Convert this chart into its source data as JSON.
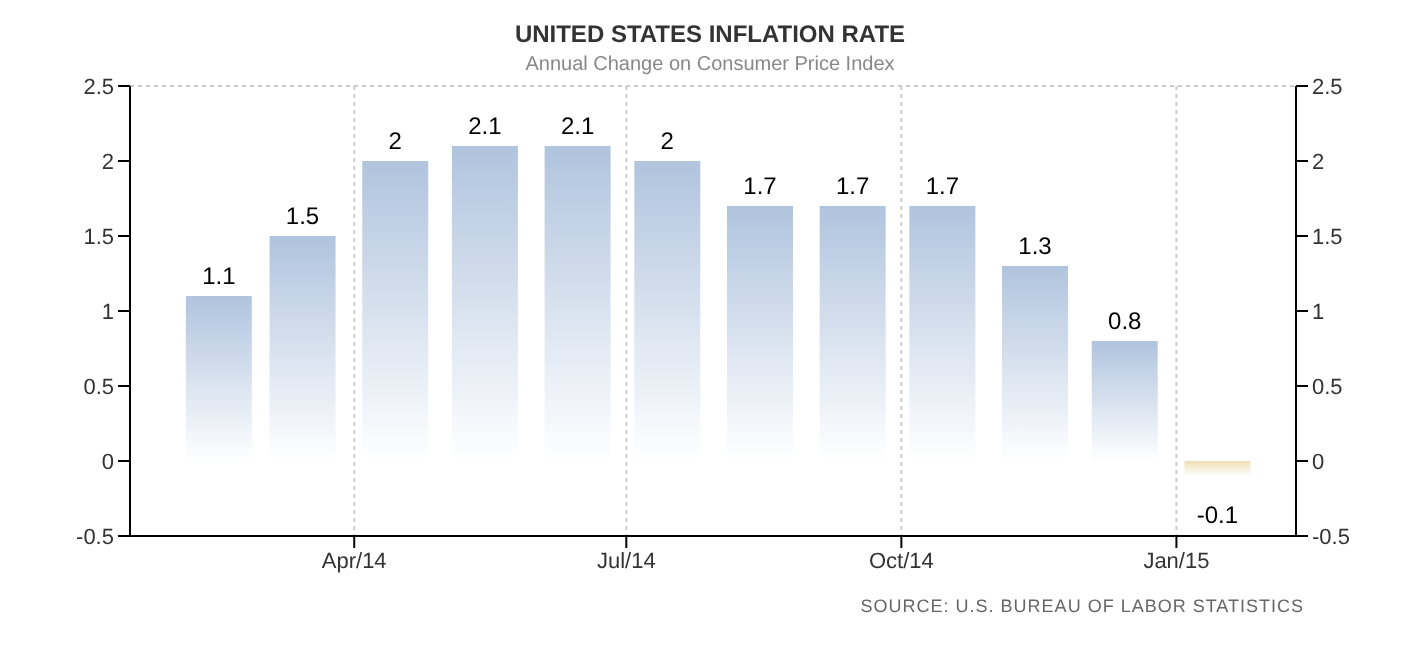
{
  "chart_data": {
    "type": "bar",
    "title": "UNITED STATES INFLATION RATE",
    "subtitle": "Annual Change on Consumer Price Index",
    "annotations": [
      "SOURCE: U.S. BUREAU OF LABOR STATISTICS"
    ],
    "x": [
      "2014-02-15",
      "2014-03-15",
      "2014-04-15",
      "2014-05-15",
      "2014-06-15",
      "2014-07-15",
      "2014-08-15",
      "2014-09-15",
      "2014-10-15",
      "2014-11-15",
      "2014-12-15",
      "2015-01-15"
    ],
    "values": [
      1.1,
      1.5,
      2,
      2.1,
      2.1,
      2,
      1.7,
      1.7,
      1.7,
      1.3,
      0.8,
      -0.1
    ],
    "colors": [
      "#b0c4de",
      "#b0c4de",
      "#b0c4de",
      "#b0c4de",
      "#b0c4de",
      "#b0c4de",
      "#b0c4de",
      "#b0c4de",
      "#b0c4de",
      "#b0c4de",
      "#b0c4de",
      "#f0deb4"
    ],
    "data_labels": true,
    "xlim": [
      "2014-01-16",
      "2015-02-10"
    ],
    "xticks": [
      {
        "value": "2014-04-01",
        "label": "Apr/14"
      },
      {
        "value": "2014-07-01",
        "label": "Jul/14"
      },
      {
        "value": "2014-10-01",
        "label": "Oct/14"
      },
      {
        "value": "2015-01-01",
        "label": "Jan/15"
      }
    ],
    "ylim": [
      -0.5,
      2.5
    ],
    "yticks": [
      -0.5,
      0,
      0.5,
      1,
      1.5,
      2,
      2.5
    ],
    "y2lim": [
      -0.5,
      2.5
    ],
    "y2ticks": [
      -0.5,
      0,
      0.5,
      1,
      1.5,
      2,
      2.5
    ],
    "grid": true
  }
}
